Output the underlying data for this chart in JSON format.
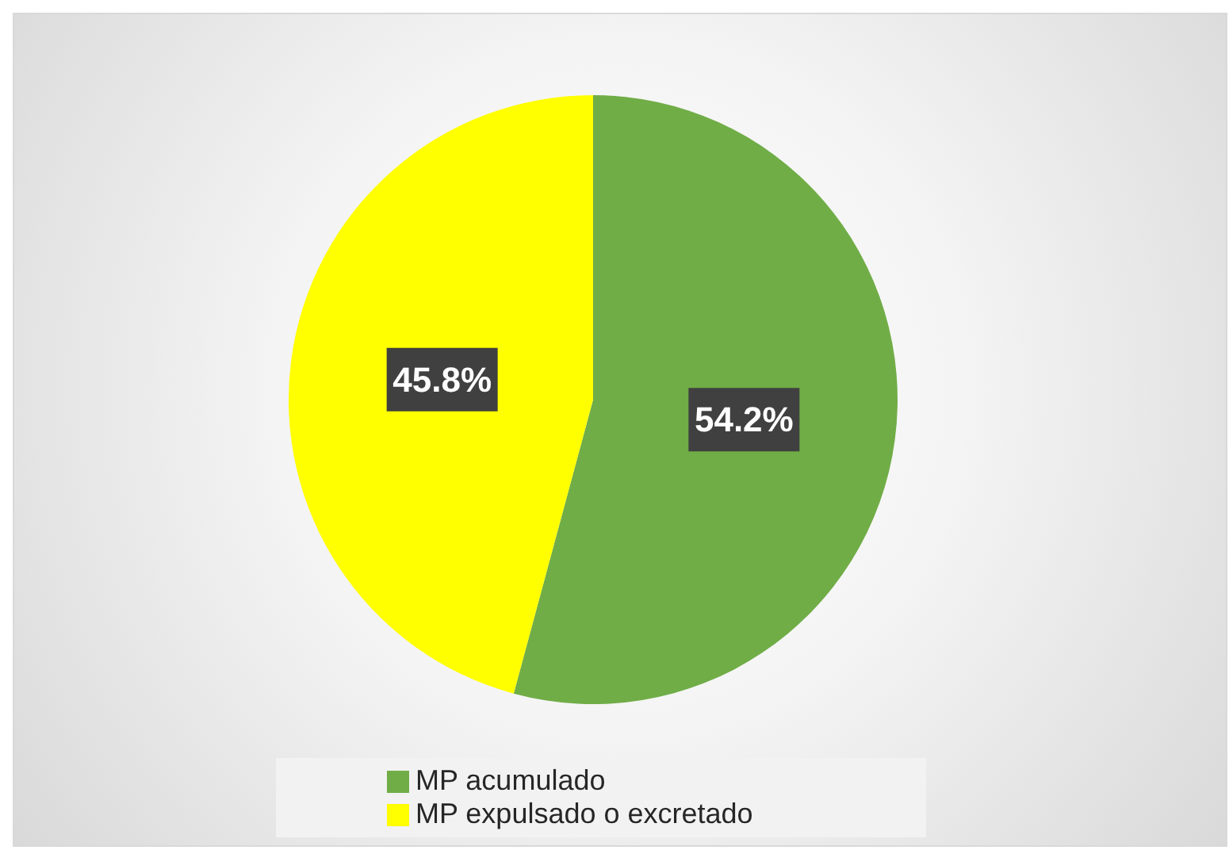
{
  "chart_data": {
    "type": "pie",
    "categories": [
      "MP acumulado",
      "MP expulsado o excretado"
    ],
    "values": [
      54.2,
      45.8
    ],
    "colors": [
      "#70ad47",
      "#ffff00"
    ],
    "value_labels": [
      "54.2%",
      "45.8%"
    ],
    "legend": "bottom"
  }
}
